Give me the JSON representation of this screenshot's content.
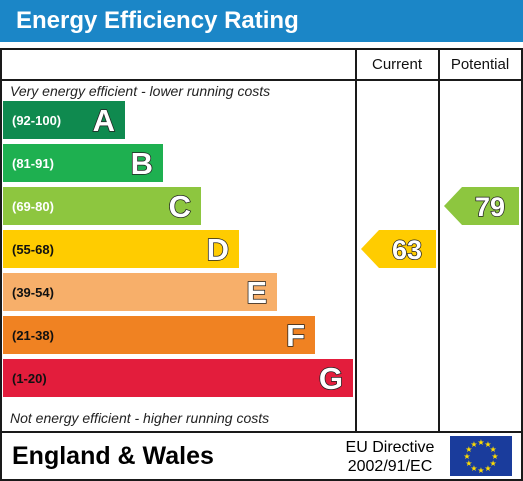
{
  "header": {
    "title": "Energy Efficiency Rating"
  },
  "columns": {
    "current": "Current",
    "potential": "Potential"
  },
  "captions": {
    "top": "Very energy efficient - lower running costs",
    "bottom": "Not energy efficient - higher running costs"
  },
  "footer": {
    "country": "England & Wales",
    "directive_line1": "EU Directive",
    "directive_line2": "2002/91/EC"
  },
  "colors": {
    "title_bar": "#1b86c7",
    "flag_blue": "#1a3c9c",
    "flag_star": "#ffdd00"
  },
  "chart_data": {
    "type": "bar",
    "bands": [
      {
        "range": "(92-100)",
        "letter": "A",
        "min": 92,
        "max": 100,
        "color": "#0f8a4f"
      },
      {
        "range": "(81-91)",
        "letter": "B",
        "min": 81,
        "max": 91,
        "color": "#1eb050"
      },
      {
        "range": "(69-80)",
        "letter": "C",
        "min": 69,
        "max": 80,
        "color": "#8dc63f"
      },
      {
        "range": "(55-68)",
        "letter": "D",
        "min": 55,
        "max": 68,
        "color": "#ffcc00"
      },
      {
        "range": "(39-54)",
        "letter": "E",
        "min": 39,
        "max": 54,
        "color": "#f7af6a"
      },
      {
        "range": "(21-38)",
        "letter": "F",
        "min": 21,
        "max": 38,
        "color": "#f08222"
      },
      {
        "range": "(1-20)",
        "letter": "G",
        "min": 1,
        "max": 20,
        "color": "#e31d3c"
      }
    ],
    "current": {
      "value": 63,
      "band": "D",
      "color": "#ffcc00"
    },
    "potential": {
      "value": 79,
      "band": "C",
      "color": "#8dc63f"
    }
  }
}
